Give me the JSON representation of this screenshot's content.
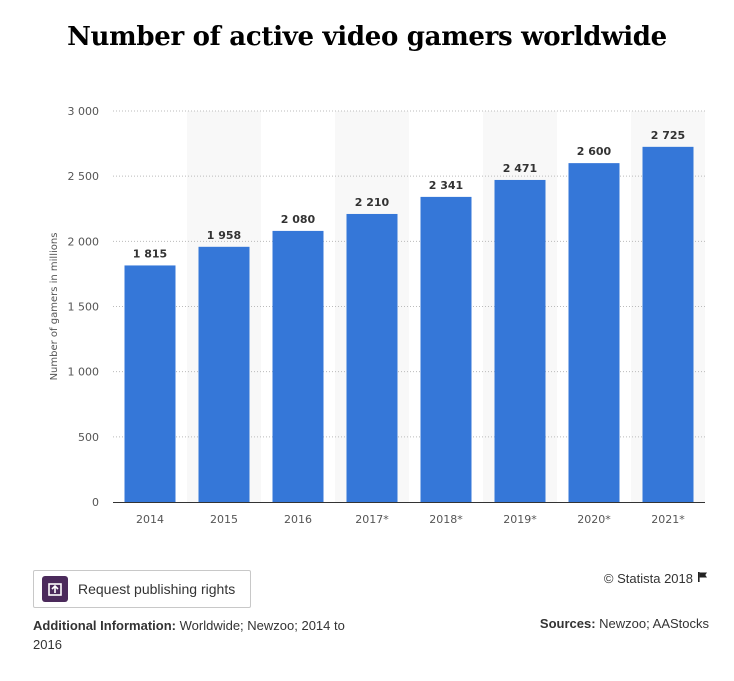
{
  "page": {
    "title": "Number of active video gamers worldwide"
  },
  "chart_data": {
    "type": "bar",
    "title": "Number of active video gamers worldwide",
    "ylabel": "Number of gamers in millions",
    "xlabel": "",
    "categories": [
      "2014",
      "2015",
      "2016",
      "2017*",
      "2018*",
      "2019*",
      "2020*",
      "2021*"
    ],
    "values": [
      1815,
      1958,
      2080,
      2210,
      2341,
      2471,
      2600,
      2725
    ],
    "value_labels": [
      "1 815",
      "1 958",
      "2 080",
      "2 210",
      "2 341",
      "2 471",
      "2 600",
      "2 725"
    ],
    "ylim": [
      0,
      3000
    ],
    "yticks": [
      0,
      500,
      1000,
      1500,
      2000,
      2500,
      3000
    ],
    "ytick_labels": [
      "0",
      "500",
      "1 000",
      "1 500",
      "2 000",
      "2 500",
      "3 000"
    ],
    "grid": true,
    "bar_color": "#3577d8",
    "band_color": "#f8f8f8"
  },
  "footer": {
    "rights_button": "Request publishing rights",
    "copyright": "© Statista 2018",
    "additional_info_label": "Additional Information:",
    "additional_info_text": "Worldwide; Newzoo; 2014 to 2016",
    "sources_label": "Sources:",
    "sources_text": "Newzoo; AAStocks"
  }
}
